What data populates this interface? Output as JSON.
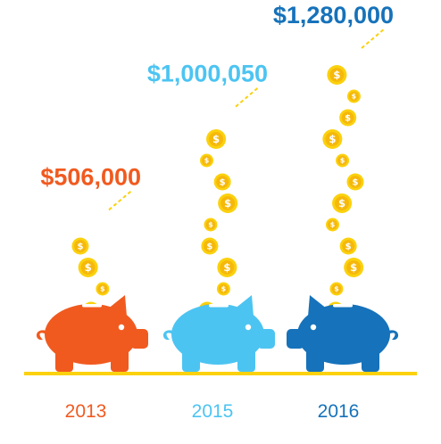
{
  "chart_data": {
    "type": "bar",
    "title": "",
    "xlabel": "",
    "ylabel": "",
    "categories": [
      "2013",
      "2015",
      "2016"
    ],
    "values": [
      506000,
      1000050,
      1280000
    ],
    "value_labels": [
      "$506,000",
      "$1,000,050",
      "$1,280,000"
    ],
    "colors": [
      "#f15a1f",
      "#4cc4f2",
      "#1672ba"
    ],
    "coin_color": "#fbd10d",
    "ground_color": "#fbd10d",
    "mark_icon": "piggy-bank-icon",
    "coin_icon": "dollar-coin-icon",
    "grid": false,
    "legend": "none"
  }
}
